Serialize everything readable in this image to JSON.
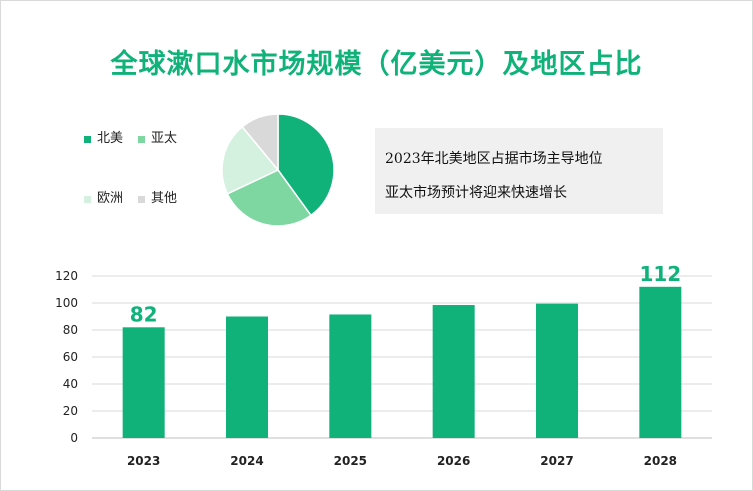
{
  "title": "全球漱口水市场规模（亿美元）及地区占比",
  "colors": {
    "accent": "#10b27a",
    "pie": [
      "#10b27a",
      "#7ed6a1",
      "#d4f1df",
      "#d9d9d9"
    ]
  },
  "legend": [
    {
      "label": "北美",
      "color": "#10b27a"
    },
    {
      "label": "亚太",
      "color": "#7ed6a1"
    },
    {
      "label": "欧洲",
      "color": "#d4f1df"
    },
    {
      "label": "其他",
      "color": "#d9d9d9"
    }
  ],
  "notes": [
    "2023年北美地区占据市场主导地位",
    "亚太市场预计将迎来快速增长"
  ],
  "chart_data": [
    {
      "type": "pie",
      "labels": [
        "北美",
        "亚太",
        "欧洲",
        "其他"
      ],
      "values": [
        40,
        28,
        21,
        11
      ]
    },
    {
      "type": "bar",
      "categories": [
        "2023",
        "2024",
        "2025",
        "2026",
        "2027",
        "2028"
      ],
      "values": [
        82,
        90,
        91.5,
        98.5,
        99.5,
        112
      ],
      "data_labels": {
        "2023": "82",
        "2028": "112"
      },
      "ylim": [
        0,
        120
      ],
      "yticks": [
        0,
        20,
        40,
        60,
        80,
        100,
        120
      ],
      "grid": true,
      "xlabel": "",
      "ylabel": ""
    }
  ]
}
